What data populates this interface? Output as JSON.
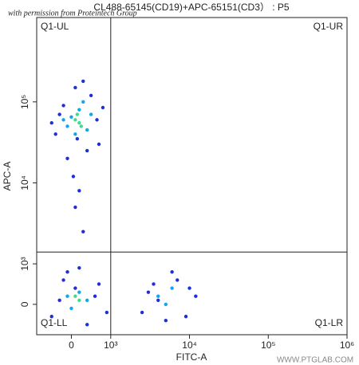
{
  "chart_data": {
    "type": "scatter",
    "title": "CL488-65145(CD19)+APC-65151(CD3） : P5",
    "watermark": "with permission from Proteintech Group",
    "footer": "WWW.PTGLAB.COM",
    "x_label": "FITC-A",
    "y_label": "APC-A",
    "xscale": "logicle",
    "yscale": "logicle",
    "xlim": [
      -880,
      1000000
    ],
    "ylim": [
      -750,
      1100000
    ],
    "xticks": [
      0,
      {
        "value": 1000,
        "label": "10³"
      },
      {
        "value": 10000,
        "label": "10⁴"
      },
      {
        "value": 100000,
        "label": "10⁵"
      },
      {
        "value": 1000000,
        "label": "10⁶"
      }
    ],
    "yticks": [
      0,
      {
        "value": 1000,
        "label": "10³"
      },
      {
        "value": 10000,
        "label": "10⁴"
      },
      {
        "value": 100000,
        "label": "10⁵"
      }
    ],
    "gates": {
      "x": 1000,
      "y": 1400
    },
    "quadrant_labels": [
      "Q1-UL",
      "Q1-UR",
      "Q1-LL",
      "Q1-LR"
    ],
    "series": [
      {
        "color": "#1f2fd8",
        "x": [
          -400,
          -200,
          100,
          500,
          700,
          -100,
          300,
          650,
          -300,
          50,
          400,
          200,
          -500,
          800,
          150,
          100,
          300,
          -500,
          -200,
          200,
          600,
          900,
          -300,
          400,
          100,
          -100,
          700,
          2500,
          3500,
          6000,
          9000,
          12000,
          4000,
          7000,
          5000,
          3000,
          10000
        ],
        "values": [
          40000,
          90000,
          150000,
          120000,
          30000,
          20000,
          180000,
          60000,
          70000,
          12000,
          25000,
          8000,
          55000,
          85000,
          35000,
          5000,
          2500,
          -300,
          600,
          900,
          200,
          -200,
          100,
          -500,
          400,
          800,
          500,
          -200,
          500,
          800,
          -300,
          200,
          100,
          600,
          -400,
          300,
          400
        ]
      },
      {
        "color": "#12a6ee",
        "x": [
          -100,
          200,
          400,
          0,
          300,
          -200,
          100,
          500,
          -100,
          200,
          400,
          0,
          4000,
          6000,
          5000
        ],
        "values": [
          50000,
          80000,
          45000,
          65000,
          100000,
          60000,
          40000,
          70000,
          200,
          300,
          100,
          -100,
          200,
          400,
          0
        ]
      },
      {
        "color": "#3fdc8c",
        "x": [
          100,
          200,
          150,
          250,
          100,
          200
        ],
        "values": [
          60000,
          55000,
          70000,
          50000,
          200,
          100
        ]
      }
    ]
  }
}
